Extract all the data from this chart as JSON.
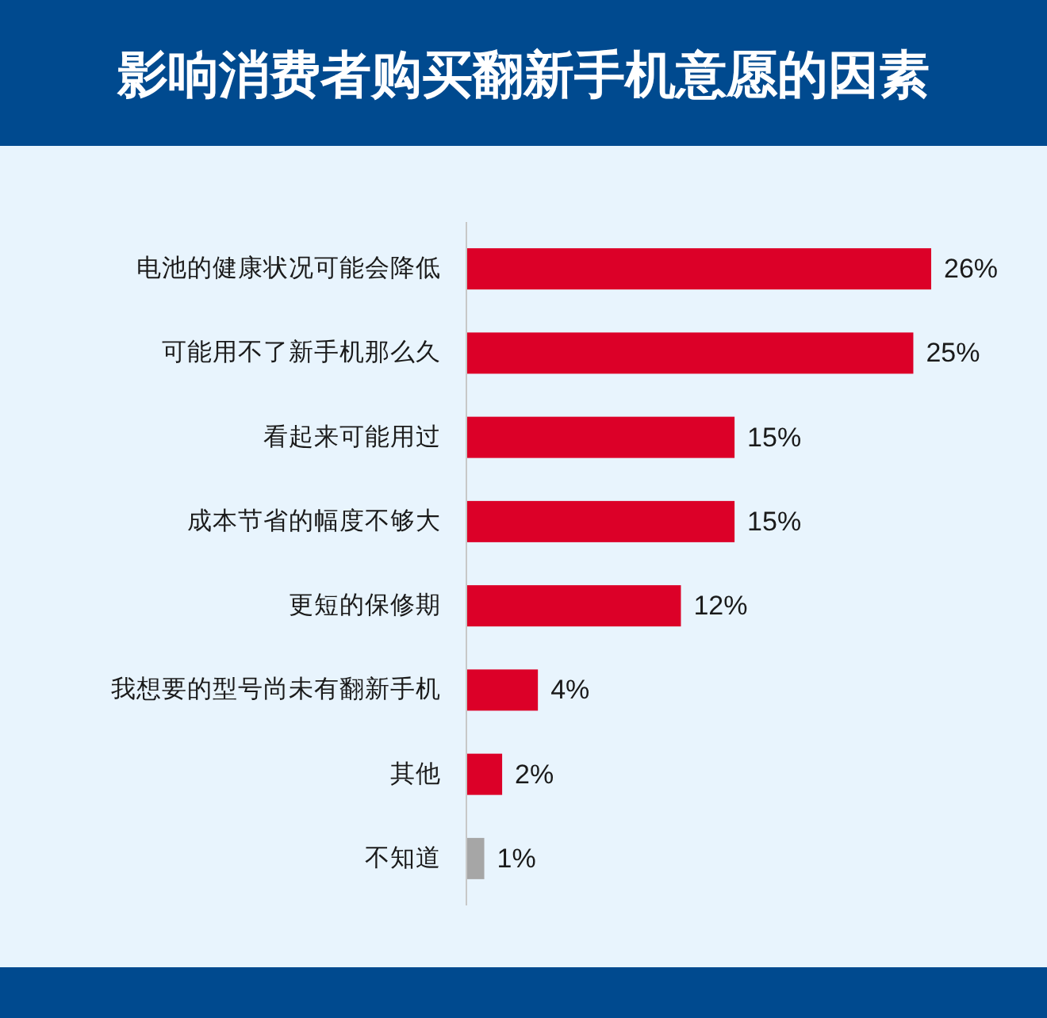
{
  "chart_data": {
    "type": "bar",
    "orientation": "horizontal",
    "title": "影响消费者购买翻新手机意愿的因素",
    "categories": [
      "电池的健康状况可能会降低",
      "可能用不了新手机那么久",
      "看起来可能用过",
      "成本节省的幅度不够大",
      "更短的保修期",
      "我想要的型号尚未有翻新手机",
      "其他",
      "不知道"
    ],
    "values": [
      26,
      25,
      15,
      15,
      12,
      4,
      2,
      1
    ],
    "colors": [
      "#dc0028",
      "#dc0028",
      "#dc0028",
      "#dc0028",
      "#dc0028",
      "#dc0028",
      "#dc0028",
      "#a6a6a6"
    ],
    "value_labels": [
      "26%",
      "25%",
      "15%",
      "15%",
      "12%",
      "4%",
      "2%",
      "1%"
    ]
  }
}
